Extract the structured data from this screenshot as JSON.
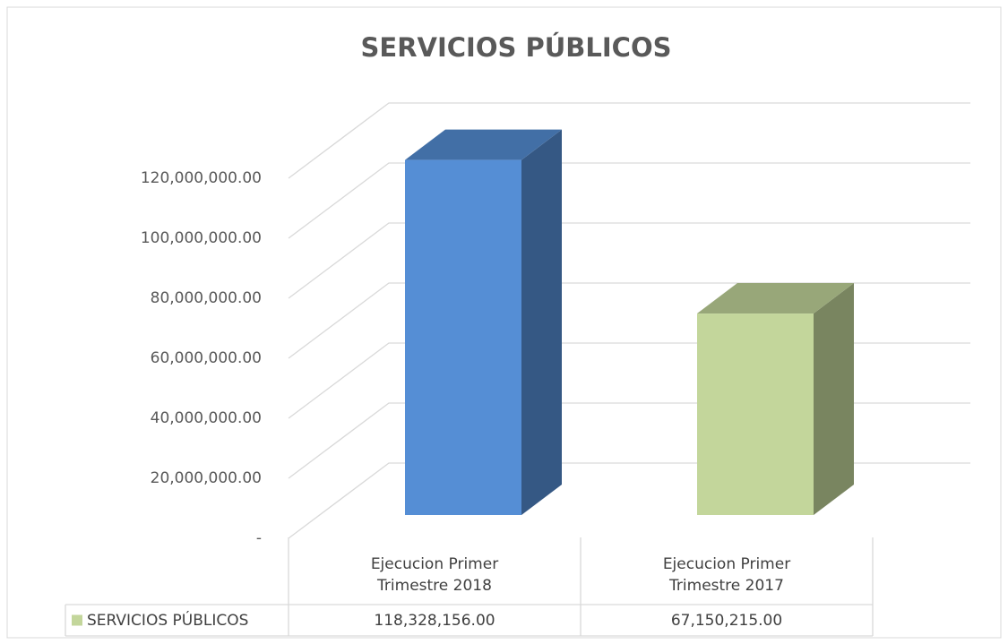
{
  "chart_data": {
    "type": "bar3d",
    "title": "SERVICIOS PÚBLICOS",
    "categories": [
      "Ejecucion Primer Trimestre 2018",
      "Ejecucion  Primer Trimestre 2017"
    ],
    "series": [
      {
        "name": "SERVICIOS PÚBLICOS",
        "color": "#c3d69b",
        "point_colors": [
          "#558ed5",
          "#c3d69b"
        ],
        "values": [
          118328156,
          67150215
        ],
        "value_labels": [
          "118,328,156.00",
          "67,150,215.00"
        ]
      }
    ],
    "ylim": [
      0,
      120000000
    ],
    "yticks": [
      {
        "value": 0,
        "label": "-"
      },
      {
        "value": 20000000,
        "label": "20,000,000.00"
      },
      {
        "value": 40000000,
        "label": "40,000,000.00"
      },
      {
        "value": 60000000,
        "label": "60,000,000.00"
      },
      {
        "value": 80000000,
        "label": "80,000,000.00"
      },
      {
        "value": 100000000,
        "label": "100,000,000.00"
      },
      {
        "value": 120000000,
        "label": "120,000,000.00"
      }
    ],
    "grid": true,
    "data_table": true
  }
}
